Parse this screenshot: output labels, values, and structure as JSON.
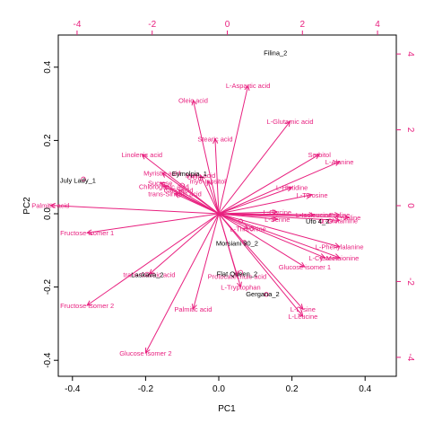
{
  "chart_data": {
    "type": "scatter",
    "subtype": "PCA biplot",
    "xlabel": "PC1",
    "ylabel": "PC2",
    "xlim": [
      -0.4,
      0.4
    ],
    "ylim": [
      -0.4,
      0.4
    ],
    "x_ticks": [
      "-0.4",
      "-0.2",
      "0.0",
      "0.2",
      "0.4"
    ],
    "y_ticks": [
      "-0.4",
      "-0.2",
      "0.0",
      "0.2",
      "0.4"
    ],
    "top_ticks": [
      "-4",
      "-2",
      "0",
      "2",
      "4"
    ],
    "right_ticks": [
      "-4",
      "-2",
      "0",
      "2",
      "4"
    ],
    "secondary_axis_range": [
      -4.5,
      4.5
    ],
    "colors": {
      "observations": "#000000",
      "variables": "#e8207f"
    },
    "observations": [
      {
        "label": "Filina_2",
        "x": 0.155,
        "y": 0.44
      },
      {
        "label": "July Lady_1",
        "x": -0.385,
        "y": 0.092
      },
      {
        "label": "Eymolpia_1",
        "x": -0.08,
        "y": 0.11
      },
      {
        "label": "Ufo 4_2",
        "x": 0.27,
        "y": -0.02
      },
      {
        "label": "Morsiani 90_2",
        "x": 0.05,
        "y": -0.08
      },
      {
        "label": "Laskava_2",
        "x": -0.195,
        "y": -0.165
      },
      {
        "label": "Flat Queen_2",
        "x": 0.05,
        "y": -0.163
      },
      {
        "label": "Gergana_2",
        "x": 0.12,
        "y": -0.218
      }
    ],
    "variables": [
      {
        "label": "L-Aspartic acid",
        "x": 0.08,
        "y": 0.35
      },
      {
        "label": "Oleic acid",
        "x": -0.07,
        "y": 0.31
      },
      {
        "label": "L-Glutamic acid",
        "x": 0.195,
        "y": 0.252
      },
      {
        "label": "Stearic acid",
        "x": -0.01,
        "y": 0.205
      },
      {
        "label": "Linolenic acid",
        "x": -0.21,
        "y": 0.162
      },
      {
        "label": "Sorbitol",
        "x": 0.275,
        "y": 0.162
      },
      {
        "label": "L-Alanine",
        "x": 0.33,
        "y": 0.142
      },
      {
        "label": "Myristic acid",
        "x": -0.155,
        "y": 0.112
      },
      {
        "label": "Malic acid",
        "x": -0.05,
        "y": 0.105
      },
      {
        "label": "myo-Inositol",
        "x": -0.03,
        "y": 0.09
      },
      {
        "label": "Sucrose",
        "x": -0.16,
        "y": 0.085
      },
      {
        "label": "Chlorogenic acid",
        "x": -0.15,
        "y": 0.075
      },
      {
        "label": "Citric acid",
        "x": -0.11,
        "y": 0.065
      },
      {
        "label": "trans-Sinapic acid",
        "x": -0.12,
        "y": 0.055
      },
      {
        "label": "L-Histidine",
        "x": 0.2,
        "y": 0.072
      },
      {
        "label": "L-Tyrosine",
        "x": 0.255,
        "y": 0.052
      },
      {
        "label": "Palmitic acid",
        "x": -0.46,
        "y": 0.023
      },
      {
        "label": "L-Glycine",
        "x": 0.16,
        "y": 0.005
      },
      {
        "label": "L-Serine",
        "x": 0.16,
        "y": -0.015
      },
      {
        "label": "L-Isoleucine",
        "x": 0.26,
        "y": -0.003
      },
      {
        "label": "Proline",
        "x": 0.33,
        "y": -0.003
      },
      {
        "label": "L-Valine",
        "x": 0.355,
        "y": -0.01
      },
      {
        "label": "L-Glutamine",
        "x": 0.33,
        "y": -0.018
      },
      {
        "label": "L-Threonine",
        "x": 0.08,
        "y": -0.04
      },
      {
        "label": "Fructose isomer 1",
        "x": -0.36,
        "y": -0.052
      },
      {
        "label": "L-Phenylalanine",
        "x": 0.33,
        "y": -0.09
      },
      {
        "label": "L-Cysteine",
        "x": 0.29,
        "y": -0.12
      },
      {
        "label": "L-Methionine",
        "x": 0.33,
        "y": -0.12
      },
      {
        "label": "Glucose isomer 1",
        "x": 0.235,
        "y": -0.145
      },
      {
        "label": "trans-Caffeic acid",
        "x": -0.19,
        "y": -0.165
      },
      {
        "label": "Protocatechuic acid",
        "x": 0.05,
        "y": -0.17
      },
      {
        "label": "L-Tryptophan",
        "x": 0.06,
        "y": -0.2
      },
      {
        "label": "Fructose isomer 2",
        "x": -0.36,
        "y": -0.25
      },
      {
        "label": "Palmitic acid",
        "x": -0.07,
        "y": -0.26
      },
      {
        "label": "L-Lysine",
        "x": 0.23,
        "y": -0.26
      },
      {
        "label": "L-Leucine",
        "x": 0.23,
        "y": -0.28
      },
      {
        "label": "Glucose isomer 2",
        "x": -0.2,
        "y": -0.38
      }
    ],
    "secondary_points": [
      {
        "x": -0.08,
        "y": 0.1
      },
      {
        "x": -0.065,
        "y": 0.1
      },
      {
        "x": -0.05,
        "y": 0.096
      },
      {
        "x": -0.1,
        "y": 0.078
      },
      {
        "x": 0.06,
        "y": -0.02
      },
      {
        "x": 0.07,
        "y": -0.078
      },
      {
        "x": 0.09,
        "y": -0.04
      },
      {
        "x": 0.06,
        "y": -0.16
      },
      {
        "x": 0.13,
        "y": -0.22
      },
      {
        "x": -0.196,
        "y": -0.165
      },
      {
        "x": -0.37,
        "y": 0.095
      },
      {
        "x": 0.28,
        "y": -0.02
      },
      {
        "x": 0.305,
        "y": -0.02
      }
    ]
  }
}
